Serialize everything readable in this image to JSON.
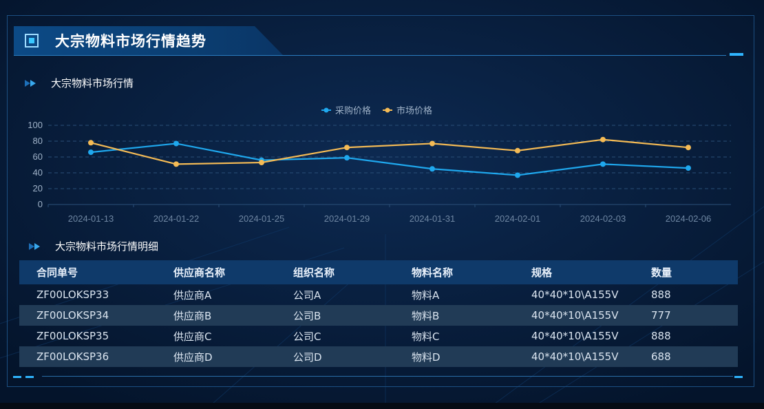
{
  "panel": {
    "title": "大宗物料市场行情趋势"
  },
  "chart_section": {
    "title": "大宗物料市场行情"
  },
  "table_section": {
    "title": "大宗物料市场行情明细"
  },
  "chart_data": {
    "type": "line",
    "x": [
      "2024-01-13",
      "2024-01-22",
      "2024-01-25",
      "2024-01-29",
      "2024-01-31",
      "2024-02-01",
      "2024-02-03",
      "2024-02-06"
    ],
    "series": [
      {
        "name": "采购价格",
        "color": "#1fa8ee",
        "values": [
          66,
          77,
          56,
          59,
          45,
          37,
          51,
          46
        ]
      },
      {
        "name": "市场价格",
        "color": "#f5bb55",
        "values": [
          78,
          51,
          53,
          72,
          77,
          68,
          82,
          72
        ]
      }
    ],
    "yticks": [
      0,
      20,
      40,
      60,
      80,
      100
    ],
    "ylim": [
      0,
      100
    ],
    "grid": true,
    "legend_position": "top-center"
  },
  "table": {
    "headers": [
      "合同单号",
      "供应商名称",
      "组织名称",
      "物料名称",
      "规格",
      "数量"
    ],
    "rows": [
      [
        "ZF00LOKSP33",
        "供应商A",
        "公司A",
        "物料A",
        "40*40*10\\A155V",
        "888"
      ],
      [
        "ZF00LOKSP34",
        "供应商B",
        "公司B",
        "物料B",
        "40*40*10\\A155V",
        "777"
      ],
      [
        "ZF00LOKSP35",
        "供应商C",
        "公司C",
        "物料C",
        "40*40*10\\A155V",
        "888"
      ],
      [
        "ZF00LOKSP36",
        "供应商D",
        "公司D",
        "物料D",
        "40*40*10\\A155V",
        "688"
      ]
    ]
  },
  "colors": {
    "background": "#061a35",
    "accent": "#2fb5ff",
    "header_bar": "#0c4a86",
    "table_header": "#0f3a6a",
    "table_alt_row": "#213b56"
  }
}
